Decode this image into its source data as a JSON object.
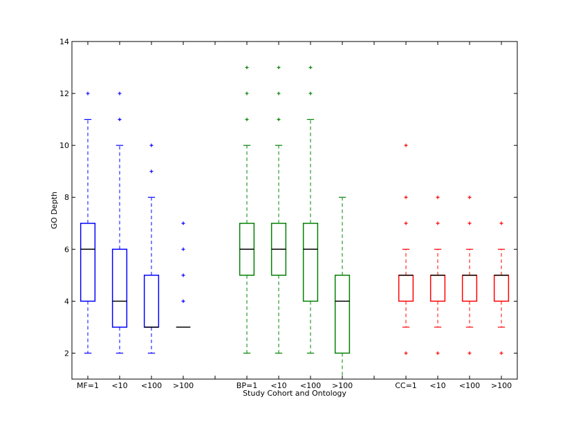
{
  "chart_data": {
    "type": "boxplot",
    "xlabel": "Study Cohort and Ontology",
    "ylabel": "GO Depth",
    "ylim": [
      1,
      14
    ],
    "yticks": [
      2,
      4,
      6,
      8,
      10,
      12,
      14
    ],
    "grid": false,
    "legend": "none",
    "groups": [
      {
        "color": "#0000ff",
        "boxes": [
          {
            "label": "MF=1",
            "q1": 4,
            "median": 6,
            "q3": 7,
            "whisker_low": 2,
            "whisker_high": 11,
            "outliers": [
              12
            ]
          },
          {
            "label": "<10",
            "q1": 3,
            "median": 4,
            "q3": 6,
            "whisker_low": 2,
            "whisker_high": 10,
            "outliers": [
              11,
              12
            ]
          },
          {
            "label": "<100",
            "q1": 3,
            "median": 3,
            "q3": 5,
            "whisker_low": 2,
            "whisker_high": 8,
            "outliers": [
              9,
              10
            ]
          },
          {
            "label": ">100",
            "q1": 3,
            "median": 3,
            "q3": 3,
            "whisker_low": 3,
            "whisker_high": 3,
            "outliers": [
              4,
              5,
              6,
              7
            ]
          }
        ]
      },
      {
        "color": "#008000",
        "boxes": [
          {
            "label": "BP=1",
            "q1": 5,
            "median": 6,
            "q3": 7,
            "whisker_low": 2,
            "whisker_high": 10,
            "outliers": [
              11,
              12,
              13
            ]
          },
          {
            "label": "<10",
            "q1": 5,
            "median": 6,
            "q3": 7,
            "whisker_low": 2,
            "whisker_high": 10,
            "outliers": [
              11,
              12,
              13
            ]
          },
          {
            "label": "<100",
            "q1": 4,
            "median": 6,
            "q3": 7,
            "whisker_low": 2,
            "whisker_high": 11,
            "outliers": [
              12,
              13
            ]
          },
          {
            "label": ">100",
            "q1": 2,
            "median": 4,
            "q3": 5,
            "whisker_low": 1,
            "whisker_high": 8,
            "outliers": []
          }
        ]
      },
      {
        "color": "#ff0000",
        "boxes": [
          {
            "label": "CC=1",
            "q1": 4,
            "median": 5,
            "q3": 5,
            "whisker_low": 3,
            "whisker_high": 6,
            "outliers": [
              2,
              7,
              8,
              10
            ]
          },
          {
            "label": "<10",
            "q1": 4,
            "median": 5,
            "q3": 5,
            "whisker_low": 3,
            "whisker_high": 6,
            "outliers": [
              2,
              7,
              8
            ]
          },
          {
            "label": "<100",
            "q1": 4,
            "median": 5,
            "q3": 5,
            "whisker_low": 3,
            "whisker_high": 6,
            "outliers": [
              2,
              7,
              8
            ]
          },
          {
            "label": ">100",
            "q1": 4,
            "median": 5,
            "q3": 5,
            "whisker_low": 3,
            "whisker_high": 6,
            "outliers": [
              2,
              7
            ]
          }
        ]
      }
    ]
  }
}
